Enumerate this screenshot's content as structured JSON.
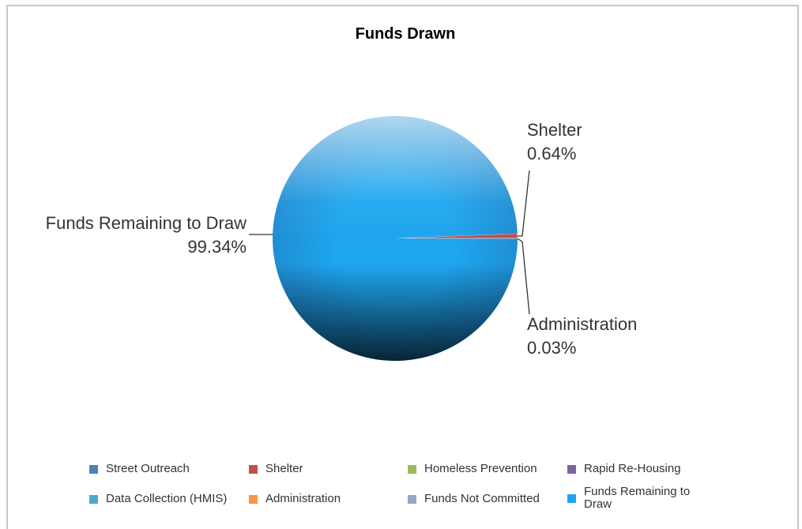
{
  "chart_data": {
    "type": "pie",
    "title": "Funds Drawn",
    "slices": [
      {
        "name": "Street Outreach",
        "value": 0,
        "color": "#4f81bd"
      },
      {
        "name": "Shelter",
        "value": 0.64,
        "color": "#c0504d"
      },
      {
        "name": "Homeless Prevention",
        "value": 0,
        "color": "#9bbb59"
      },
      {
        "name": "Rapid Re-Housing",
        "value": 0,
        "color": "#8064a2"
      },
      {
        "name": "Data Collection (HMIS)",
        "value": 0,
        "color": "#4bacc6"
      },
      {
        "name": "Administration",
        "value": 0.03,
        "color": "#f79646"
      },
      {
        "name": "Funds Not Committed",
        "value": 0,
        "color": "#95a6c6"
      },
      {
        "name": "Funds Remaining to Draw",
        "value": 99.34,
        "color": "#1ea7f0"
      }
    ],
    "data_labels": [
      {
        "series": "Shelter",
        "name": "Shelter",
        "percent": "0.64%"
      },
      {
        "series": "Administration",
        "name": "Administration",
        "percent": "0.03%"
      },
      {
        "series": "Funds Remaining to Draw",
        "name": "Funds Remaining to Draw",
        "percent": "99.34%"
      }
    ],
    "legend": {
      "placement": "bottom",
      "items": [
        {
          "label": "Street Outreach",
          "color": "#4f81bd"
        },
        {
          "label": "Shelter",
          "color": "#c0504d"
        },
        {
          "label": "Homeless Prevention",
          "color": "#9bbb59"
        },
        {
          "label": "Rapid Re-Housing",
          "color": "#8064a2"
        },
        {
          "label": "Data Collection (HMIS)",
          "color": "#4bacc6"
        },
        {
          "label": "Administration",
          "color": "#f79646"
        },
        {
          "label": "Funds Not Committed",
          "color": "#95a6c6"
        },
        {
          "label": "Funds Remaining to Draw",
          "color": "#1ea7f0"
        }
      ]
    }
  }
}
